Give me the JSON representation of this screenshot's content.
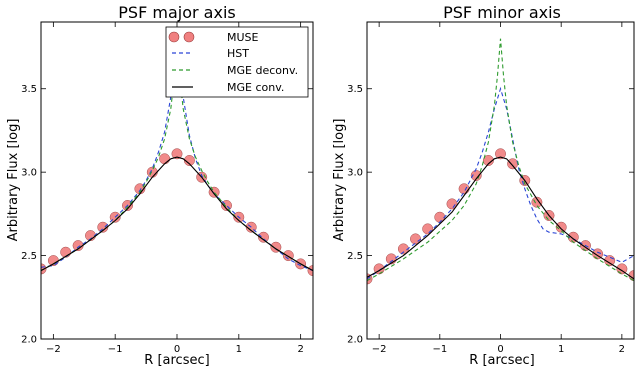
{
  "chart_data": [
    {
      "type": "line",
      "title": "PSF major axis",
      "xlabel": "R [arcsec]",
      "ylabel": "Arbitrary Flux [log]",
      "xlim": [
        -2.2,
        2.2
      ],
      "ylim": [
        2.0,
        3.9
      ],
      "xticks": [
        -2,
        -1,
        0,
        1,
        2
      ],
      "yticks": [
        2.0,
        2.5,
        3.0,
        3.5
      ],
      "xtick_labels": [
        "−2",
        "−1",
        "0",
        "1",
        "2"
      ],
      "ytick_labels": [
        "2.0",
        "2.5",
        "3.0",
        "3.5"
      ],
      "grid": false,
      "legend_placement": "top-right",
      "legend": [
        "MUSE",
        "HST",
        "MGE deconv.",
        "MGE conv."
      ],
      "series": [
        {
          "name": "MUSE",
          "style": "markers",
          "color": "#f08080",
          "x": [
            -2.2,
            -2.0,
            -1.8,
            -1.6,
            -1.4,
            -1.2,
            -1.0,
            -0.8,
            -0.6,
            -0.4,
            -0.2,
            0.0,
            0.2,
            0.4,
            0.6,
            0.8,
            1.0,
            1.2,
            1.4,
            1.6,
            1.8,
            2.0,
            2.2
          ],
          "y": [
            2.42,
            2.47,
            2.52,
            2.56,
            2.62,
            2.67,
            2.73,
            2.8,
            2.9,
            3.0,
            3.08,
            3.11,
            3.07,
            2.97,
            2.88,
            2.8,
            2.73,
            2.67,
            2.61,
            2.55,
            2.5,
            2.45,
            2.41
          ]
        },
        {
          "name": "HST",
          "style": "dashed",
          "color": "#2a45d6",
          "x": [
            -2.2,
            -2.0,
            -1.8,
            -1.6,
            -1.4,
            -1.2,
            -1.0,
            -0.8,
            -0.6,
            -0.5,
            -0.4,
            -0.3,
            -0.2,
            -0.1,
            0.0,
            0.1,
            0.2,
            0.3,
            0.4,
            0.5,
            0.6,
            0.8,
            1.0,
            1.2,
            1.4,
            1.6,
            1.8,
            2.0,
            2.2
          ],
          "y": [
            2.43,
            2.44,
            2.49,
            2.55,
            2.6,
            2.66,
            2.73,
            2.8,
            2.89,
            2.95,
            3.02,
            3.12,
            3.24,
            3.45,
            3.62,
            3.45,
            3.22,
            3.08,
            2.98,
            2.92,
            2.87,
            2.8,
            2.73,
            2.67,
            2.6,
            2.54,
            2.48,
            2.44,
            2.41
          ]
        },
        {
          "name": "MGE deconv.",
          "style": "dashed",
          "color": "#2e9b2e",
          "x": [
            -2.2,
            -2.0,
            -1.6,
            -1.2,
            -1.0,
            -0.8,
            -0.6,
            -0.5,
            -0.4,
            -0.3,
            -0.2,
            -0.1,
            -0.05,
            0.0,
            0.05,
            0.1,
            0.2,
            0.3,
            0.4,
            0.5,
            0.6,
            0.8,
            1.0,
            1.2,
            1.6,
            2.0,
            2.2
          ],
          "y": [
            2.41,
            2.45,
            2.54,
            2.65,
            2.71,
            2.79,
            2.88,
            2.94,
            3.01,
            3.09,
            3.2,
            3.38,
            3.55,
            3.8,
            3.55,
            3.38,
            3.2,
            3.09,
            3.01,
            2.94,
            2.88,
            2.79,
            2.71,
            2.65,
            2.54,
            2.45,
            2.41
          ]
        },
        {
          "name": "MGE conv.",
          "style": "solid",
          "color": "#000000",
          "x": [
            -2.2,
            -2.0,
            -1.6,
            -1.2,
            -1.0,
            -0.8,
            -0.6,
            -0.4,
            -0.2,
            -0.1,
            0.0,
            0.1,
            0.2,
            0.4,
            0.6,
            0.8,
            1.0,
            1.2,
            1.6,
            2.0,
            2.2
          ],
          "y": [
            2.41,
            2.45,
            2.54,
            2.65,
            2.71,
            2.78,
            2.87,
            2.97,
            3.05,
            3.08,
            3.09,
            3.08,
            3.05,
            2.97,
            2.87,
            2.78,
            2.71,
            2.65,
            2.54,
            2.45,
            2.41
          ]
        }
      ]
    },
    {
      "type": "line",
      "title": "PSF minor axis",
      "xlabel": "R [arcsec]",
      "ylabel": "Arbitrary Flux [log]",
      "xlim": [
        -2.2,
        2.2
      ],
      "ylim": [
        2.0,
        3.9
      ],
      "xticks": [
        -2,
        -1,
        0,
        1,
        2
      ],
      "yticks": [
        2.0,
        2.5,
        3.0,
        3.5
      ],
      "xtick_labels": [
        "−2",
        "−1",
        "0",
        "1",
        "2"
      ],
      "ytick_labels": [
        "2.0",
        "2.5",
        "3.0",
        "3.5"
      ],
      "grid": false,
      "series": [
        {
          "name": "MUSE",
          "style": "markers",
          "color": "#f08080",
          "x": [
            -2.2,
            -2.0,
            -1.8,
            -1.6,
            -1.4,
            -1.2,
            -1.0,
            -0.8,
            -0.6,
            -0.4,
            -0.2,
            0.0,
            0.2,
            0.4,
            0.6,
            0.8,
            1.0,
            1.2,
            1.4,
            1.6,
            1.8,
            2.0,
            2.2
          ],
          "y": [
            2.36,
            2.42,
            2.48,
            2.54,
            2.6,
            2.66,
            2.73,
            2.81,
            2.9,
            2.98,
            3.07,
            3.11,
            3.05,
            2.95,
            2.82,
            2.74,
            2.67,
            2.61,
            2.56,
            2.51,
            2.47,
            2.42,
            2.38
          ]
        },
        {
          "name": "HST",
          "style": "dashed",
          "color": "#2a45d6",
          "x": [
            -2.2,
            -2.0,
            -1.6,
            -1.2,
            -1.0,
            -0.8,
            -0.6,
            -0.4,
            -0.3,
            -0.2,
            -0.1,
            0.0,
            0.1,
            0.2,
            0.3,
            0.4,
            0.5,
            0.6,
            0.7,
            0.8,
            1.0,
            1.2,
            1.6,
            2.0,
            2.2
          ],
          "y": [
            2.36,
            2.41,
            2.52,
            2.63,
            2.7,
            2.78,
            2.88,
            3.02,
            3.12,
            3.24,
            3.38,
            3.5,
            3.38,
            3.2,
            3.02,
            2.9,
            2.8,
            2.72,
            2.66,
            2.64,
            2.63,
            2.6,
            2.52,
            2.46,
            2.5
          ]
        },
        {
          "name": "MGE deconv.",
          "style": "dashed",
          "color": "#2e9b2e",
          "x": [
            -2.2,
            -2.0,
            -1.6,
            -1.2,
            -0.8,
            -0.6,
            -0.4,
            -0.3,
            -0.2,
            -0.1,
            -0.05,
            0.0,
            0.05,
            0.1,
            0.2,
            0.3,
            0.4,
            0.6,
            0.8,
            1.0,
            1.2,
            1.6,
            2.0,
            2.2
          ],
          "y": [
            2.35,
            2.39,
            2.48,
            2.58,
            2.71,
            2.8,
            2.93,
            3.04,
            3.18,
            3.4,
            3.58,
            3.8,
            3.58,
            3.4,
            3.18,
            3.04,
            2.93,
            2.8,
            2.71,
            2.65,
            2.58,
            2.48,
            2.39,
            2.35
          ]
        },
        {
          "name": "MGE conv.",
          "style": "solid",
          "color": "#000000",
          "x": [
            -2.2,
            -2.0,
            -1.6,
            -1.2,
            -0.8,
            -0.6,
            -0.4,
            -0.2,
            -0.1,
            0.0,
            0.1,
            0.2,
            0.4,
            0.6,
            0.8,
            1.0,
            1.2,
            1.6,
            2.0,
            2.2
          ],
          "y": [
            2.37,
            2.41,
            2.5,
            2.62,
            2.76,
            2.86,
            2.96,
            3.05,
            3.08,
            3.09,
            3.08,
            3.04,
            2.95,
            2.84,
            2.74,
            2.66,
            2.6,
            2.5,
            2.41,
            2.36
          ]
        }
      ]
    }
  ]
}
